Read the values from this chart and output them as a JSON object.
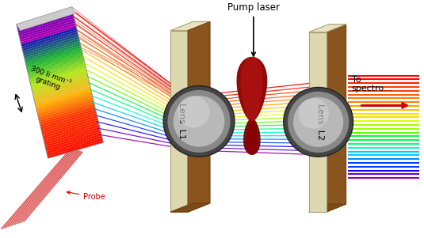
{
  "bg_color": "#ffffff",
  "grating_label": "300 li mm⁻¹\ngrating",
  "probe_label": "Probe",
  "pump_label": "Pump laser",
  "lens1_label": "Lens  L1",
  "lens2_label": "Lens  L2",
  "spectrometer_label": "To\nspectro...",
  "figsize": [
    5.35,
    3.01
  ],
  "dpi": 100,
  "colors_spectrum": [
    "#FF0000",
    "#FF2000",
    "#FF4000",
    "#FF6000",
    "#FF8000",
    "#FFA000",
    "#FFC000",
    "#FFE000",
    "#E0FF00",
    "#A0FF00",
    "#60FF00",
    "#00FF40",
    "#00FF80",
    "#00FFCC",
    "#00CCFF",
    "#0088FF",
    "#0044FF",
    "#2200FF",
    "#6600CC",
    "#9900AA"
  ]
}
